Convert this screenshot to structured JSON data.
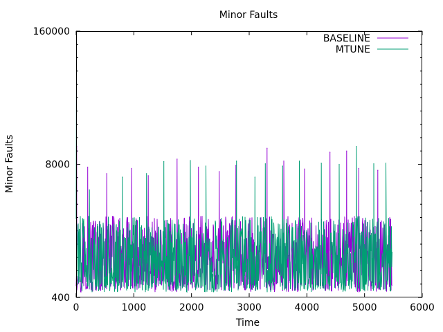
{
  "chart_data": {
    "type": "line",
    "title": "Minor Faults",
    "xlabel": "Time",
    "ylabel": "Minor Faults",
    "xlim": [
      0,
      6000
    ],
    "ylim": [
      400,
      160000
    ],
    "y_scale": "log",
    "x_ticks": [
      "0",
      "1000",
      "2000",
      "3000",
      "4000",
      "5000",
      "6000"
    ],
    "y_ticks": [
      {
        "value": 400,
        "label": "400"
      },
      {
        "value": 8000,
        "label": "8000"
      },
      {
        "value": 160000,
        "label": "160000"
      }
    ],
    "legend_position": "top-right",
    "series": [
      {
        "name": "BASELINE",
        "color": "#9400d3",
        "x_end": 5480,
        "typical_range": [
          450,
          2500
        ],
        "peaks": [
          {
            "x": 10,
            "y": 12000
          },
          {
            "x": 200,
            "y": 7500
          },
          {
            "x": 530,
            "y": 6500
          },
          {
            "x": 960,
            "y": 7300
          },
          {
            "x": 1250,
            "y": 6200
          },
          {
            "x": 1750,
            "y": 9000
          },
          {
            "x": 2120,
            "y": 7500
          },
          {
            "x": 2480,
            "y": 6800
          },
          {
            "x": 2770,
            "y": 7800
          },
          {
            "x": 3310,
            "y": 11500
          },
          {
            "x": 3600,
            "y": 8600
          },
          {
            "x": 3960,
            "y": 7200
          },
          {
            "x": 4400,
            "y": 10500
          },
          {
            "x": 4690,
            "y": 10800
          },
          {
            "x": 4900,
            "y": 7300
          },
          {
            "x": 5230,
            "y": 7000
          }
        ]
      },
      {
        "name": "MTUNE",
        "color": "#009e73",
        "x_end": 5480,
        "typical_range": [
          450,
          2500
        ],
        "peaks": [
          {
            "x": 5,
            "y": 50000
          },
          {
            "x": 230,
            "y": 4500
          },
          {
            "x": 800,
            "y": 6000
          },
          {
            "x": 1220,
            "y": 6500
          },
          {
            "x": 1520,
            "y": 8500
          },
          {
            "x": 1980,
            "y": 8700
          },
          {
            "x": 2250,
            "y": 7700
          },
          {
            "x": 2780,
            "y": 8600
          },
          {
            "x": 3100,
            "y": 6000
          },
          {
            "x": 3280,
            "y": 8100
          },
          {
            "x": 3580,
            "y": 7700
          },
          {
            "x": 3870,
            "y": 8600
          },
          {
            "x": 4250,
            "y": 8200
          },
          {
            "x": 4560,
            "y": 8000
          },
          {
            "x": 4860,
            "y": 12000
          },
          {
            "x": 5160,
            "y": 8100
          },
          {
            "x": 5370,
            "y": 8200
          }
        ]
      }
    ]
  }
}
